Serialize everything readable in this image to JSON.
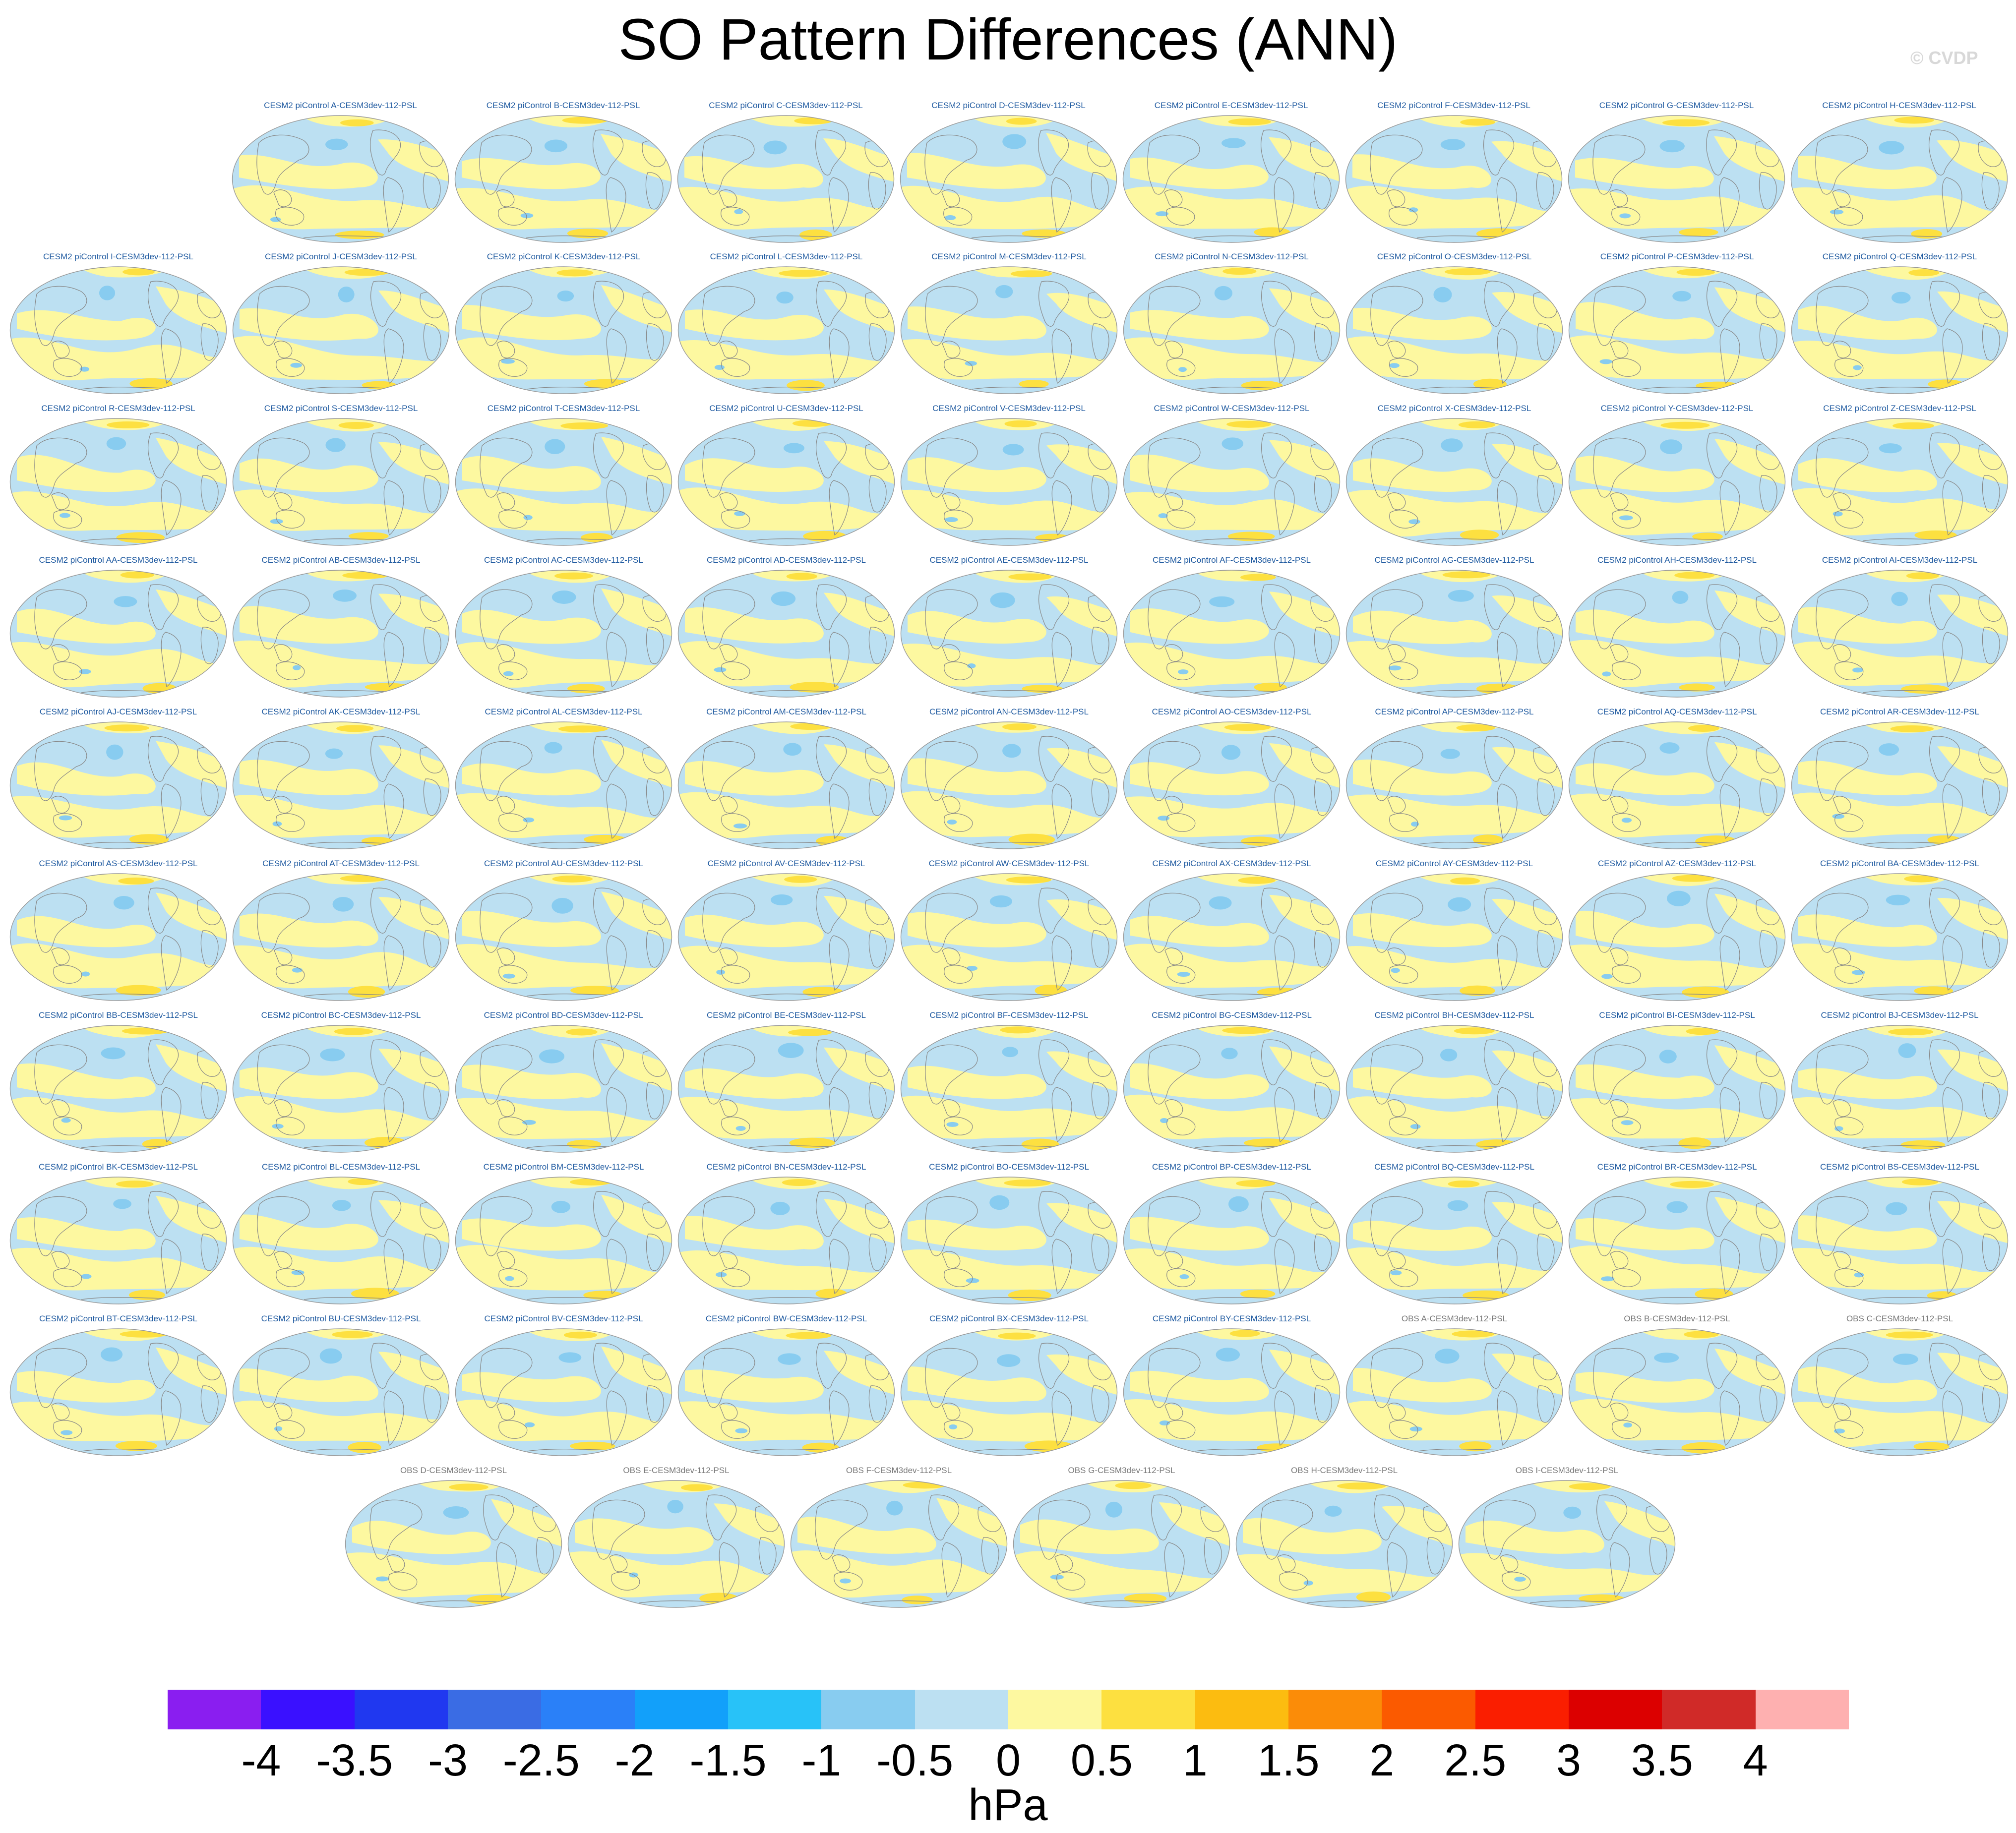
{
  "title": "SO Pattern Differences (ANN)",
  "copyright": "© CVDP",
  "panels": {
    "row_sizes": [
      8,
      9,
      9,
      9,
      9,
      9,
      9,
      9,
      9,
      6
    ],
    "titles": [
      "CESM2 piControl A-CESM3dev-112-PSL",
      "CESM2 piControl B-CESM3dev-112-PSL",
      "CESM2 piControl C-CESM3dev-112-PSL",
      "CESM2 piControl D-CESM3dev-112-PSL",
      "CESM2 piControl E-CESM3dev-112-PSL",
      "CESM2 piControl F-CESM3dev-112-PSL",
      "CESM2 piControl G-CESM3dev-112-PSL",
      "CESM2 piControl H-CESM3dev-112-PSL",
      "CESM2 piControl I-CESM3dev-112-PSL",
      "CESM2 piControl J-CESM3dev-112-PSL",
      "CESM2 piControl K-CESM3dev-112-PSL",
      "CESM2 piControl L-CESM3dev-112-PSL",
      "CESM2 piControl M-CESM3dev-112-PSL",
      "CESM2 piControl N-CESM3dev-112-PSL",
      "CESM2 piControl O-CESM3dev-112-PSL",
      "CESM2 piControl P-CESM3dev-112-PSL",
      "CESM2 piControl Q-CESM3dev-112-PSL",
      "CESM2 piControl R-CESM3dev-112-PSL",
      "CESM2 piControl S-CESM3dev-112-PSL",
      "CESM2 piControl T-CESM3dev-112-PSL",
      "CESM2 piControl U-CESM3dev-112-PSL",
      "CESM2 piControl V-CESM3dev-112-PSL",
      "CESM2 piControl W-CESM3dev-112-PSL",
      "CESM2 piControl X-CESM3dev-112-PSL",
      "CESM2 piControl Y-CESM3dev-112-PSL",
      "CESM2 piControl Z-CESM3dev-112-PSL",
      "CESM2 piControl AA-CESM3dev-112-PSL",
      "CESM2 piControl AB-CESM3dev-112-PSL",
      "CESM2 piControl AC-CESM3dev-112-PSL",
      "CESM2 piControl AD-CESM3dev-112-PSL",
      "CESM2 piControl AE-CESM3dev-112-PSL",
      "CESM2 piControl AF-CESM3dev-112-PSL",
      "CESM2 piControl AG-CESM3dev-112-PSL",
      "CESM2 piControl AH-CESM3dev-112-PSL",
      "CESM2 piControl AI-CESM3dev-112-PSL",
      "CESM2 piControl AJ-CESM3dev-112-PSL",
      "CESM2 piControl AK-CESM3dev-112-PSL",
      "CESM2 piControl AL-CESM3dev-112-PSL",
      "CESM2 piControl AM-CESM3dev-112-PSL",
      "CESM2 piControl AN-CESM3dev-112-PSL",
      "CESM2 piControl AO-CESM3dev-112-PSL",
      "CESM2 piControl AP-CESM3dev-112-PSL",
      "CESM2 piControl AQ-CESM3dev-112-PSL",
      "CESM2 piControl AR-CESM3dev-112-PSL",
      "CESM2 piControl AS-CESM3dev-112-PSL",
      "CESM2 piControl AT-CESM3dev-112-PSL",
      "CESM2 piControl AU-CESM3dev-112-PSL",
      "CESM2 piControl AV-CESM3dev-112-PSL",
      "CESM2 piControl AW-CESM3dev-112-PSL",
      "CESM2 piControl AX-CESM3dev-112-PSL",
      "CESM2 piControl AY-CESM3dev-112-PSL",
      "CESM2 piControl AZ-CESM3dev-112-PSL",
      "CESM2 piControl BA-CESM3dev-112-PSL",
      "CESM2 piControl BB-CESM3dev-112-PSL",
      "CESM2 piControl BC-CESM3dev-112-PSL",
      "CESM2 piControl BD-CESM3dev-112-PSL",
      "CESM2 piControl BE-CESM3dev-112-PSL",
      "CESM2 piControl BF-CESM3dev-112-PSL",
      "CESM2 piControl BG-CESM3dev-112-PSL",
      "CESM2 piControl BH-CESM3dev-112-PSL",
      "CESM2 piControl BI-CESM3dev-112-PSL",
      "CESM2 piControl BJ-CESM3dev-112-PSL",
      "CESM2 piControl BK-CESM3dev-112-PSL",
      "CESM2 piControl BL-CESM3dev-112-PSL",
      "CESM2 piControl BM-CESM3dev-112-PSL",
      "CESM2 piControl BN-CESM3dev-112-PSL",
      "CESM2 piControl BO-CESM3dev-112-PSL",
      "CESM2 piControl BP-CESM3dev-112-PSL",
      "CESM2 piControl BQ-CESM3dev-112-PSL",
      "CESM2 piControl BR-CESM3dev-112-PSL",
      "CESM2 piControl BS-CESM3dev-112-PSL",
      "CESM2 piControl BT-CESM3dev-112-PSL",
      "CESM2 piControl BU-CESM3dev-112-PSL",
      "CESM2 piControl BV-CESM3dev-112-PSL",
      "CESM2 piControl BW-CESM3dev-112-PSL",
      "CESM2 piControl BX-CESM3dev-112-PSL",
      "CESM2 piControl BY-CESM3dev-112-PSL",
      "OBS A-CESM3dev-112-PSL",
      "OBS B-CESM3dev-112-PSL",
      "OBS C-CESM3dev-112-PSL",
      "OBS D-CESM3dev-112-PSL",
      "OBS E-CESM3dev-112-PSL",
      "OBS F-CESM3dev-112-PSL",
      "OBS G-CESM3dev-112-PSL",
      "OBS H-CESM3dev-112-PSL",
      "OBS I-CESM3dev-112-PSL"
    ]
  },
  "colorbar": {
    "colors": [
      "#8a1ef0",
      "#3a10ff",
      "#2038f0",
      "#3a6ce4",
      "#2a80f8",
      "#12a0fa",
      "#28c2f8",
      "#88ccf0",
      "#bce0f2",
      "#fdf8a0",
      "#fde040",
      "#fcbc10",
      "#fb8c08",
      "#fb5a00",
      "#fa1e00",
      "#dc0000",
      "#d02a28",
      "#feb0b0"
    ],
    "labels": [
      "-4",
      "-3.5",
      "-3",
      "-2.5",
      "-2",
      "-1.5",
      "-1",
      "-0.5",
      "0",
      "0.5",
      "1",
      "1.5",
      "2",
      "2.5",
      "3",
      "3.5",
      "4"
    ],
    "units": "hPa"
  },
  "map_colors": {
    "negative": "#bce0f2",
    "positive": "#fdf8a0",
    "strong_positive": "#fde040",
    "strong_negative": "#88ccf0",
    "coast": "#888888",
    "outline": "#999999"
  }
}
